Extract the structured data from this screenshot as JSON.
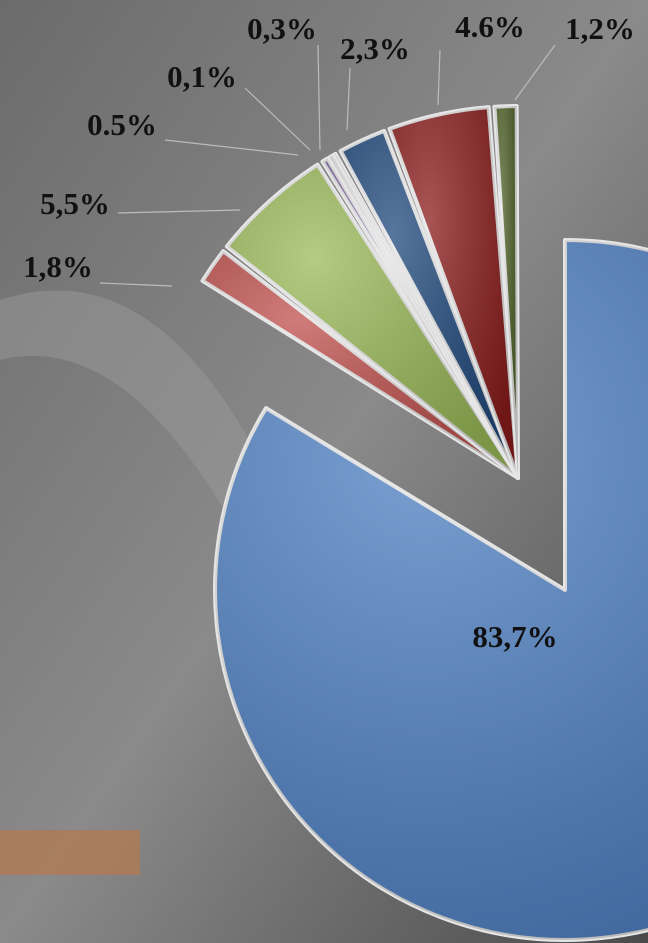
{
  "chart_data": {
    "type": "pie",
    "categories": [
      null,
      null,
      null,
      null,
      null,
      null,
      null,
      null,
      null
    ],
    "values": [
      83.7,
      1.8,
      5.5,
      0.5,
      0.1,
      0.3,
      2.3,
      4.6,
      1.2
    ],
    "value_labels": [
      "83,7%",
      "1,8%",
      "5,5%",
      "0.5%",
      "0,1%",
      "0,3%",
      "2,3%",
      "4.6%",
      "1,2%"
    ],
    "colors": [
      "#4f81c4",
      "#c0504d",
      "#9bbb59",
      "#8064a2",
      "#4bacc6",
      "#f79646",
      "#1f497d",
      "#8b1c1c",
      "#4f6228"
    ]
  }
}
